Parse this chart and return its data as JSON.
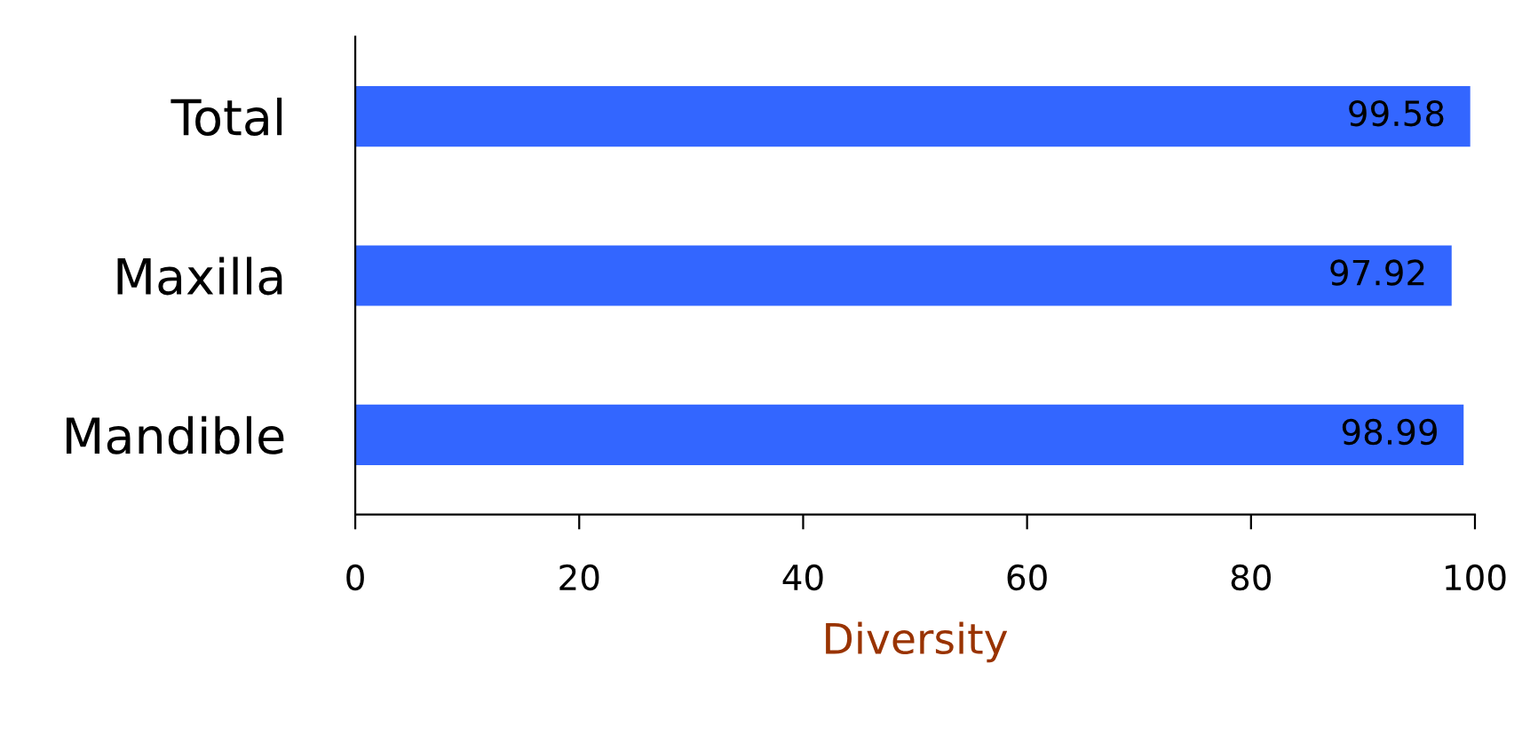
{
  "chart_data": {
    "type": "bar",
    "orientation": "horizontal",
    "categories": [
      "Total",
      "Maxilla",
      "Mandible"
    ],
    "values": [
      99.58,
      97.92,
      98.99
    ],
    "color": "#3366ff",
    "xlabel": "Diversity",
    "xlim": [
      0,
      100
    ],
    "xticks": [
      0,
      20,
      40,
      60,
      80,
      100
    ],
    "data_labels": true,
    "grid": false
  }
}
